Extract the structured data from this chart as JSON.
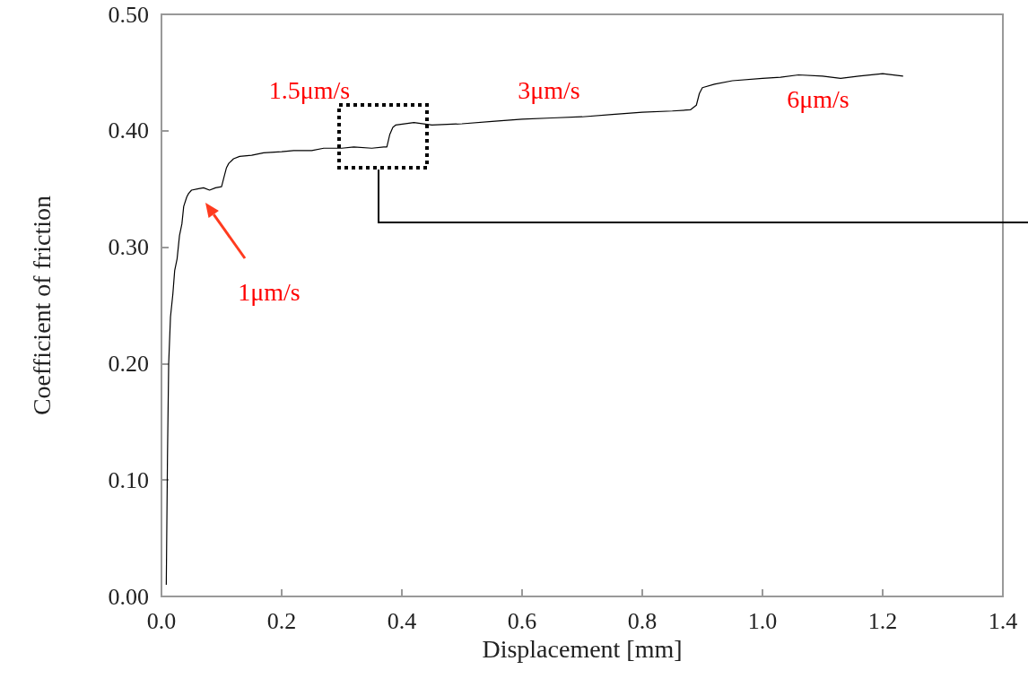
{
  "chart_data": {
    "type": "line",
    "xlabel": "Displacement [mm]",
    "ylabel": "Coefficient of friction",
    "xlim": [
      0,
      1.4
    ],
    "xticks": [
      {
        "value": 0,
        "label": "0.0"
      },
      0.2,
      0.4,
      0.6,
      0.8,
      {
        "value": 1,
        "label": "1.0"
      },
      1.2,
      1.4
    ],
    "ylim": [
      0,
      0.5
    ],
    "yticks": [
      {
        "value": 0,
        "label": "0.00"
      },
      {
        "value": 0.1,
        "label": "0.10"
      },
      {
        "value": 0.2,
        "label": "0.20"
      },
      {
        "value": 0.3,
        "label": "0.30"
      },
      {
        "value": 0.4,
        "label": "0.40"
      },
      {
        "value": 0.5,
        "label": "0.50"
      }
    ],
    "grid": false,
    "marker": "none",
    "line_style": "solid",
    "series": [
      {
        "color": "#000000",
        "x": [
          0.008,
          0.01,
          0.012,
          0.015,
          0.019,
          0.022,
          0.026,
          0.03,
          0.034,
          0.037,
          0.042,
          0.045,
          0.05,
          0.06,
          0.07,
          0.08,
          0.09,
          0.1,
          0.104,
          0.108,
          0.112,
          0.12,
          0.13,
          0.15,
          0.17,
          0.2,
          0.22,
          0.25,
          0.27,
          0.3,
          0.32,
          0.35,
          0.37,
          0.375,
          0.38,
          0.385,
          0.39,
          0.42,
          0.45,
          0.5,
          0.55,
          0.6,
          0.65,
          0.7,
          0.75,
          0.8,
          0.85,
          0.88,
          0.89,
          0.895,
          0.9,
          0.92,
          0.95,
          1.0,
          1.03,
          1.06,
          1.1,
          1.13,
          1.16,
          1.2,
          1.234
        ],
        "values": [
          0.01,
          0.12,
          0.2,
          0.24,
          0.26,
          0.28,
          0.29,
          0.31,
          0.32,
          0.335,
          0.343,
          0.346,
          0.349,
          0.35,
          0.351,
          0.349,
          0.351,
          0.352,
          0.36,
          0.368,
          0.372,
          0.376,
          0.378,
          0.379,
          0.381,
          0.382,
          0.383,
          0.383,
          0.385,
          0.385,
          0.386,
          0.385,
          0.386,
          0.386,
          0.397,
          0.403,
          0.405,
          0.407,
          0.405,
          0.406,
          0.408,
          0.41,
          0.411,
          0.412,
          0.414,
          0.416,
          0.417,
          0.418,
          0.422,
          0.432,
          0.437,
          0.44,
          0.443,
          0.445,
          0.446,
          0.448,
          0.447,
          0.445,
          0.447,
          0.449,
          0.447
        ]
      }
    ],
    "annotations": [
      "1μm/s",
      "1.5μm/s",
      "3μm/s",
      "6μm/s"
    ]
  }
}
